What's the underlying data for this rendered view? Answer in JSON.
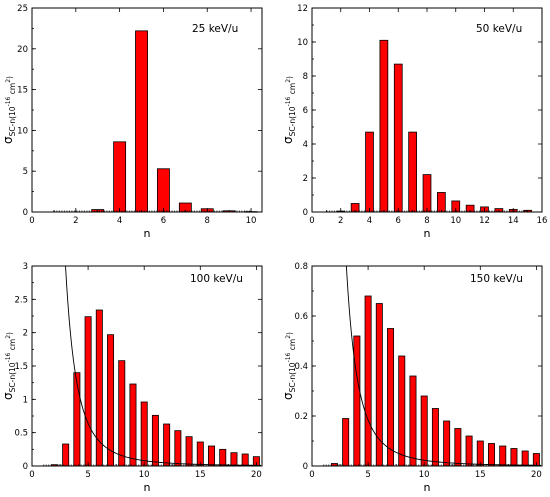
{
  "chart_data": [
    {
      "type": "bar",
      "label": "25 keV/u",
      "xlabel": "n",
      "ylabel_base": "σ",
      "ylabel_sub": "SC-n",
      "ylabel_unit": "(10",
      "ylabel_exp": "-16",
      "ylabel_unit2": " cm",
      "ylabel_exp2": "2",
      "ylabel_close": ")",
      "xlim": [
        0,
        10.5
      ],
      "ylim": [
        0,
        25
      ],
      "xticks": [
        0,
        2,
        4,
        6,
        8,
        10
      ],
      "yticks": [
        0,
        5,
        10,
        15,
        20,
        25
      ],
      "n": [
        1,
        2,
        3,
        4,
        5,
        6,
        7,
        8,
        9,
        10
      ],
      "values": [
        0,
        0,
        0.3,
        8.6,
        22.2,
        5.3,
        1.1,
        0.4,
        0.15,
        0.05
      ]
    },
    {
      "type": "bar",
      "label": "50 keV/u",
      "xlabel": "n",
      "ylabel_base": "σ",
      "ylabel_sub": "SC-n",
      "ylabel_unit": "(10",
      "ylabel_exp": "-16",
      "ylabel_unit2": " cm",
      "ylabel_exp2": "2",
      "ylabel_close": ")",
      "xlim": [
        0,
        16
      ],
      "ylim": [
        0,
        12
      ],
      "xticks": [
        0,
        2,
        4,
        6,
        8,
        10,
        12,
        14,
        16
      ],
      "yticks": [
        0,
        2,
        4,
        6,
        8,
        10,
        12
      ],
      "n": [
        1,
        2,
        3,
        4,
        5,
        6,
        7,
        8,
        9,
        10,
        11,
        12,
        13,
        14,
        15
      ],
      "values": [
        0,
        0.05,
        0.5,
        4.7,
        10.1,
        8.7,
        4.7,
        2.2,
        1.15,
        0.65,
        0.4,
        0.3,
        0.2,
        0.15,
        0.1
      ]
    },
    {
      "type": "bar",
      "label": "100 keV/u",
      "xlabel": "n",
      "ylabel_base": "σ",
      "ylabel_sub": "SC-n",
      "ylabel_unit": "(10",
      "ylabel_exp": "-16",
      "ylabel_unit2": " cm",
      "ylabel_exp2": "2",
      "ylabel_close": ")",
      "xlim": [
        0,
        20.5
      ],
      "ylim": [
        0,
        3
      ],
      "xticks": [
        0,
        5,
        10,
        15,
        20
      ],
      "yticks": [
        0,
        0.5,
        1,
        1.5,
        2,
        2.5,
        3
      ],
      "n": [
        1,
        2,
        3,
        4,
        5,
        6,
        7,
        8,
        9,
        10,
        11,
        12,
        13,
        14,
        15,
        16,
        17,
        18,
        19,
        20
      ],
      "values": [
        0,
        0.02,
        0.33,
        1.4,
        2.24,
        2.34,
        1.97,
        1.58,
        1.23,
        0.96,
        0.76,
        0.63,
        0.53,
        0.44,
        0.36,
        0.3,
        0.25,
        0.2,
        0.18,
        0.14
      ],
      "curve_scale": 80
    },
    {
      "type": "bar",
      "label": "150 keV/u",
      "xlabel": "n",
      "ylabel_base": "σ",
      "ylabel_sub": "SC-n",
      "ylabel_unit": "(10",
      "ylabel_exp": "-16",
      "ylabel_unit2": " cm",
      "ylabel_exp2": "2",
      "ylabel_close": ")",
      "xlim": [
        0,
        20.5
      ],
      "ylim": [
        0,
        0.8
      ],
      "xticks": [
        0,
        5,
        10,
        15,
        20
      ],
      "yticks": [
        0,
        0.2,
        0.4,
        0.6,
        0.8
      ],
      "n": [
        1,
        2,
        3,
        4,
        5,
        6,
        7,
        8,
        9,
        10,
        11,
        12,
        13,
        14,
        15,
        16,
        17,
        18,
        19,
        20
      ],
      "values": [
        0,
        0.01,
        0.19,
        0.52,
        0.68,
        0.65,
        0.55,
        0.44,
        0.36,
        0.28,
        0.23,
        0.18,
        0.15,
        0.12,
        0.1,
        0.09,
        0.08,
        0.07,
        0.06,
        0.05
      ],
      "curve_scale": 23
    }
  ]
}
